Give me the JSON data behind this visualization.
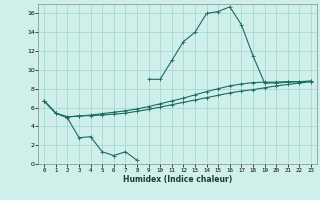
{
  "xlabel": "Humidex (Indice chaleur)",
  "bg_color": "#cff0ea",
  "grid_color": "#a8d8d0",
  "line_color": "#1a6b60",
  "xlim": [
    -0.5,
    23.5
  ],
  "ylim": [
    0,
    17
  ],
  "xticks": [
    0,
    1,
    2,
    3,
    4,
    5,
    6,
    7,
    8,
    9,
    10,
    11,
    12,
    13,
    14,
    15,
    16,
    17,
    18,
    19,
    20,
    21,
    22,
    23
  ],
  "yticks": [
    0,
    2,
    4,
    6,
    8,
    10,
    12,
    14,
    16
  ],
  "series1_x": [
    0,
    1,
    2,
    3,
    4,
    5,
    6,
    7,
    8,
    9,
    10,
    11,
    12,
    13,
    14,
    15,
    16,
    17,
    18,
    19,
    20,
    21,
    22,
    23
  ],
  "series1_y": [
    6.7,
    5.4,
    5.0,
    5.1,
    5.15,
    5.2,
    5.3,
    5.4,
    5.6,
    5.8,
    6.05,
    6.3,
    6.55,
    6.8,
    7.05,
    7.3,
    7.55,
    7.75,
    7.9,
    8.1,
    8.3,
    8.45,
    8.6,
    8.75
  ],
  "series2_x": [
    0,
    1,
    2,
    3,
    4,
    5,
    6,
    7,
    8,
    9,
    10,
    11,
    12,
    13,
    14,
    15,
    16,
    17,
    18,
    19,
    20,
    21,
    22,
    23
  ],
  "series2_y": [
    6.7,
    5.4,
    5.0,
    5.1,
    5.2,
    5.35,
    5.5,
    5.65,
    5.85,
    6.1,
    6.4,
    6.7,
    7.0,
    7.35,
    7.7,
    8.0,
    8.3,
    8.5,
    8.65,
    8.7,
    8.7,
    8.75,
    8.75,
    8.8
  ],
  "series3_x": [
    0,
    1,
    2,
    3,
    4,
    5,
    6,
    7,
    8
  ],
  "series3_y": [
    6.7,
    5.4,
    4.9,
    2.8,
    2.9,
    1.3,
    0.9,
    1.3,
    0.4
  ],
  "series4_x": [
    9,
    10,
    11,
    12,
    13,
    14,
    15,
    16,
    17,
    18,
    19,
    20,
    21,
    22,
    23
  ],
  "series4_y": [
    9.0,
    9.0,
    11.0,
    13.0,
    14.0,
    16.0,
    16.2,
    16.7,
    14.8,
    11.5,
    8.6,
    8.6,
    8.7,
    8.75,
    8.8
  ]
}
